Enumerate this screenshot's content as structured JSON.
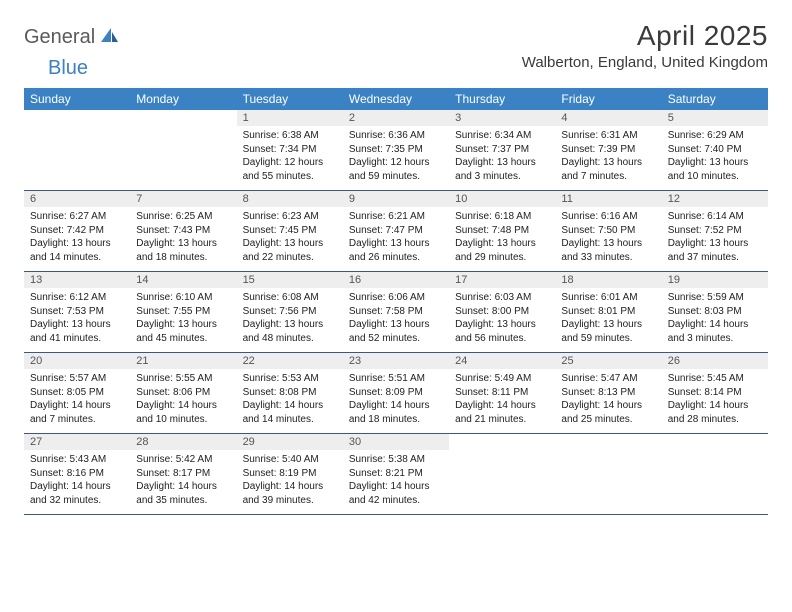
{
  "logo": {
    "part1": "General",
    "part2": "Blue"
  },
  "title": "April 2025",
  "location": "Walberton, England, United Kingdom",
  "colors": {
    "header_bg": "#3b82c4",
    "header_text": "#ffffff",
    "date_bar_bg": "#eeeeee",
    "date_bar_text": "#555555",
    "week_divider": "#3b5a7a",
    "body_text": "#222222",
    "title_text": "#3a3a3a",
    "logo_gray": "#5a5a5a",
    "logo_blue": "#3b82c4",
    "page_bg": "#ffffff"
  },
  "day_names": [
    "Sunday",
    "Monday",
    "Tuesday",
    "Wednesday",
    "Thursday",
    "Friday",
    "Saturday"
  ],
  "weeks": [
    [
      null,
      null,
      {
        "date": "1",
        "sunrise": "Sunrise: 6:38 AM",
        "sunset": "Sunset: 7:34 PM",
        "daylight": "Daylight: 12 hours and 55 minutes."
      },
      {
        "date": "2",
        "sunrise": "Sunrise: 6:36 AM",
        "sunset": "Sunset: 7:35 PM",
        "daylight": "Daylight: 12 hours and 59 minutes."
      },
      {
        "date": "3",
        "sunrise": "Sunrise: 6:34 AM",
        "sunset": "Sunset: 7:37 PM",
        "daylight": "Daylight: 13 hours and 3 minutes."
      },
      {
        "date": "4",
        "sunrise": "Sunrise: 6:31 AM",
        "sunset": "Sunset: 7:39 PM",
        "daylight": "Daylight: 13 hours and 7 minutes."
      },
      {
        "date": "5",
        "sunrise": "Sunrise: 6:29 AM",
        "sunset": "Sunset: 7:40 PM",
        "daylight": "Daylight: 13 hours and 10 minutes."
      }
    ],
    [
      {
        "date": "6",
        "sunrise": "Sunrise: 6:27 AM",
        "sunset": "Sunset: 7:42 PM",
        "daylight": "Daylight: 13 hours and 14 minutes."
      },
      {
        "date": "7",
        "sunrise": "Sunrise: 6:25 AM",
        "sunset": "Sunset: 7:43 PM",
        "daylight": "Daylight: 13 hours and 18 minutes."
      },
      {
        "date": "8",
        "sunrise": "Sunrise: 6:23 AM",
        "sunset": "Sunset: 7:45 PM",
        "daylight": "Daylight: 13 hours and 22 minutes."
      },
      {
        "date": "9",
        "sunrise": "Sunrise: 6:21 AM",
        "sunset": "Sunset: 7:47 PM",
        "daylight": "Daylight: 13 hours and 26 minutes."
      },
      {
        "date": "10",
        "sunrise": "Sunrise: 6:18 AM",
        "sunset": "Sunset: 7:48 PM",
        "daylight": "Daylight: 13 hours and 29 minutes."
      },
      {
        "date": "11",
        "sunrise": "Sunrise: 6:16 AM",
        "sunset": "Sunset: 7:50 PM",
        "daylight": "Daylight: 13 hours and 33 minutes."
      },
      {
        "date": "12",
        "sunrise": "Sunrise: 6:14 AM",
        "sunset": "Sunset: 7:52 PM",
        "daylight": "Daylight: 13 hours and 37 minutes."
      }
    ],
    [
      {
        "date": "13",
        "sunrise": "Sunrise: 6:12 AM",
        "sunset": "Sunset: 7:53 PM",
        "daylight": "Daylight: 13 hours and 41 minutes."
      },
      {
        "date": "14",
        "sunrise": "Sunrise: 6:10 AM",
        "sunset": "Sunset: 7:55 PM",
        "daylight": "Daylight: 13 hours and 45 minutes."
      },
      {
        "date": "15",
        "sunrise": "Sunrise: 6:08 AM",
        "sunset": "Sunset: 7:56 PM",
        "daylight": "Daylight: 13 hours and 48 minutes."
      },
      {
        "date": "16",
        "sunrise": "Sunrise: 6:06 AM",
        "sunset": "Sunset: 7:58 PM",
        "daylight": "Daylight: 13 hours and 52 minutes."
      },
      {
        "date": "17",
        "sunrise": "Sunrise: 6:03 AM",
        "sunset": "Sunset: 8:00 PM",
        "daylight": "Daylight: 13 hours and 56 minutes."
      },
      {
        "date": "18",
        "sunrise": "Sunrise: 6:01 AM",
        "sunset": "Sunset: 8:01 PM",
        "daylight": "Daylight: 13 hours and 59 minutes."
      },
      {
        "date": "19",
        "sunrise": "Sunrise: 5:59 AM",
        "sunset": "Sunset: 8:03 PM",
        "daylight": "Daylight: 14 hours and 3 minutes."
      }
    ],
    [
      {
        "date": "20",
        "sunrise": "Sunrise: 5:57 AM",
        "sunset": "Sunset: 8:05 PM",
        "daylight": "Daylight: 14 hours and 7 minutes."
      },
      {
        "date": "21",
        "sunrise": "Sunrise: 5:55 AM",
        "sunset": "Sunset: 8:06 PM",
        "daylight": "Daylight: 14 hours and 10 minutes."
      },
      {
        "date": "22",
        "sunrise": "Sunrise: 5:53 AM",
        "sunset": "Sunset: 8:08 PM",
        "daylight": "Daylight: 14 hours and 14 minutes."
      },
      {
        "date": "23",
        "sunrise": "Sunrise: 5:51 AM",
        "sunset": "Sunset: 8:09 PM",
        "daylight": "Daylight: 14 hours and 18 minutes."
      },
      {
        "date": "24",
        "sunrise": "Sunrise: 5:49 AM",
        "sunset": "Sunset: 8:11 PM",
        "daylight": "Daylight: 14 hours and 21 minutes."
      },
      {
        "date": "25",
        "sunrise": "Sunrise: 5:47 AM",
        "sunset": "Sunset: 8:13 PM",
        "daylight": "Daylight: 14 hours and 25 minutes."
      },
      {
        "date": "26",
        "sunrise": "Sunrise: 5:45 AM",
        "sunset": "Sunset: 8:14 PM",
        "daylight": "Daylight: 14 hours and 28 minutes."
      }
    ],
    [
      {
        "date": "27",
        "sunrise": "Sunrise: 5:43 AM",
        "sunset": "Sunset: 8:16 PM",
        "daylight": "Daylight: 14 hours and 32 minutes."
      },
      {
        "date": "28",
        "sunrise": "Sunrise: 5:42 AM",
        "sunset": "Sunset: 8:17 PM",
        "daylight": "Daylight: 14 hours and 35 minutes."
      },
      {
        "date": "29",
        "sunrise": "Sunrise: 5:40 AM",
        "sunset": "Sunset: 8:19 PM",
        "daylight": "Daylight: 14 hours and 39 minutes."
      },
      {
        "date": "30",
        "sunrise": "Sunrise: 5:38 AM",
        "sunset": "Sunset: 8:21 PM",
        "daylight": "Daylight: 14 hours and 42 minutes."
      },
      null,
      null,
      null
    ]
  ]
}
